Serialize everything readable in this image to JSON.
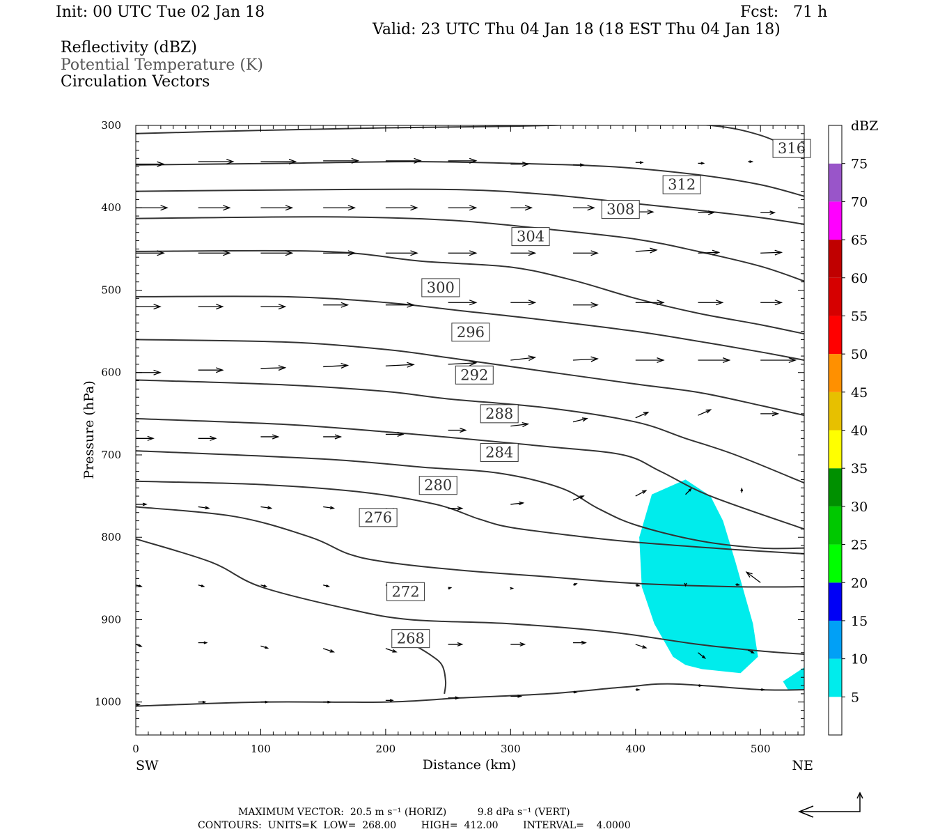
{
  "header": {
    "init": "Init: 00 UTC Tue 02 Jan 18",
    "fcst": "Fcst:   71 h",
    "valid": "Valid: 23 UTC Thu 04 Jan 18 (18 EST Thu 04 Jan 18)",
    "var1": "Reflectivity (dBZ)",
    "var2": "Potential Temperature (K)",
    "var3": "Circulation Vectors"
  },
  "footer": {
    "line1": "MAXIMUM VECTOR:  20.5 m s⁻¹ (HORIZ)          9.8 dPa s⁻¹ (VERT)",
    "line2": "CONTOURS:  UNITS=K  LOW=  268.00        HIGH=  412.00        INTERVAL=    4.0000"
  },
  "chart_data": {
    "type": "cross-section",
    "xlabel": "Distance (km)",
    "ylabel": "Pressure (hPa)",
    "xlim": [
      0,
      535
    ],
    "ylim": [
      1040,
      300
    ],
    "x_ticks": [
      0,
      100,
      200,
      300,
      400,
      500
    ],
    "y_ticks": [
      300,
      400,
      500,
      600,
      700,
      800,
      900,
      1000
    ],
    "x_end_labels": {
      "left": "SW",
      "right": "NE"
    },
    "colorbar": {
      "unit": "dBZ",
      "levels": [
        5,
        10,
        15,
        20,
        25,
        30,
        35,
        40,
        45,
        50,
        55,
        60,
        65,
        70,
        75
      ],
      "colors": [
        "#ffffff",
        "#00ecec",
        "#01a0f6",
        "#0000f6",
        "#00ff00",
        "#00c800",
        "#009000",
        "#ffff00",
        "#e7c000",
        "#ff9000",
        "#ff0000",
        "#d60000",
        "#c00000",
        "#ff00ff",
        "#9955c9",
        "#ffffff"
      ]
    },
    "contours": [
      {
        "label": "316",
        "points": [
          [
            0,
            310
          ],
          [
            100,
            306
          ],
          [
            200,
            303
          ],
          [
            300,
            301
          ],
          [
            400,
            298
          ],
          [
            460,
            300
          ],
          [
            500,
            312
          ],
          [
            535,
            335
          ]
        ],
        "label_at": [
          525,
          328
        ]
      },
      {
        "label": "",
        "points": [
          [
            0,
            348
          ],
          [
            120,
            346
          ],
          [
            220,
            344
          ],
          [
            300,
            346
          ],
          [
            380,
            350
          ],
          [
            450,
            360
          ],
          [
            500,
            372
          ],
          [
            535,
            386
          ]
        ]
      },
      {
        "label": "312",
        "points": [
          [
            0,
            380
          ],
          [
            150,
            378
          ],
          [
            260,
            378
          ],
          [
            330,
            384
          ],
          [
            400,
            395
          ],
          [
            450,
            403
          ],
          [
            500,
            412
          ],
          [
            535,
            420
          ]
        ],
        "label_at": [
          437,
          372
        ]
      },
      {
        "label": "308",
        "points": [
          [
            0,
            413
          ],
          [
            150,
            411
          ],
          [
            250,
            415
          ],
          [
            330,
            426
          ],
          [
            400,
            438
          ],
          [
            450,
            453
          ],
          [
            500,
            471
          ],
          [
            535,
            489
          ]
        ],
        "label_at": [
          388,
          402
        ]
      },
      {
        "label": "304",
        "points": [
          [
            0,
            453
          ],
          [
            150,
            453
          ],
          [
            230,
            465
          ],
          [
            300,
            472
          ],
          [
            350,
            488
          ],
          [
            400,
            510
          ],
          [
            450,
            528
          ],
          [
            500,
            542
          ],
          [
            535,
            553
          ]
        ],
        "label_at": [
          316,
          435
        ]
      },
      {
        "label": "300",
        "points": [
          [
            0,
            508
          ],
          [
            120,
            508
          ],
          [
            200,
            515
          ],
          [
            260,
            525
          ],
          [
            320,
            535
          ],
          [
            400,
            550
          ],
          [
            450,
            562
          ],
          [
            500,
            575
          ],
          [
            535,
            585
          ]
        ],
        "label_at": [
          244,
          497
        ]
      },
      {
        "label": "296",
        "points": [
          [
            0,
            560
          ],
          [
            120,
            563
          ],
          [
            200,
            572
          ],
          [
            250,
            582
          ],
          [
            320,
            597
          ],
          [
            400,
            614
          ],
          [
            450,
            624
          ],
          [
            500,
            640
          ],
          [
            535,
            652
          ]
        ],
        "label_at": [
          268,
          551
        ]
      },
      {
        "label": "292",
        "points": [
          [
            0,
            609
          ],
          [
            120,
            615
          ],
          [
            200,
            623
          ],
          [
            250,
            632
          ],
          [
            330,
            643
          ],
          [
            400,
            660
          ],
          [
            440,
            680
          ],
          [
            480,
            700
          ],
          [
            535,
            734
          ]
        ],
        "label_at": [
          271,
          603
        ]
      },
      {
        "label": "288",
        "points": [
          [
            0,
            656
          ],
          [
            120,
            663
          ],
          [
            200,
            672
          ],
          [
            260,
            680
          ],
          [
            330,
            690
          ],
          [
            390,
            700
          ],
          [
            420,
            720
          ],
          [
            460,
            750
          ],
          [
            535,
            790
          ]
        ],
        "label_at": [
          291,
          650
        ]
      },
      {
        "label": "284",
        "points": [
          [
            0,
            695
          ],
          [
            150,
            705
          ],
          [
            230,
            715
          ],
          [
            290,
            722
          ],
          [
            340,
            740
          ],
          [
            370,
            765
          ],
          [
            400,
            785
          ],
          [
            450,
            804
          ],
          [
            500,
            813
          ],
          [
            535,
            813
          ]
        ],
        "label_at": [
          291,
          697
        ]
      },
      {
        "label": "280",
        "points": [
          [
            0,
            732
          ],
          [
            100,
            736
          ],
          [
            180,
            745
          ],
          [
            240,
            760
          ],
          [
            275,
            778
          ],
          [
            300,
            788
          ],
          [
            350,
            798
          ],
          [
            400,
            806
          ],
          [
            480,
            815
          ],
          [
            535,
            820
          ]
        ],
        "label_at": [
          242,
          737
        ]
      },
      {
        "label": "276",
        "points": [
          [
            0,
            763
          ],
          [
            80,
            775
          ],
          [
            140,
            800
          ],
          [
            170,
            820
          ],
          [
            200,
            830
          ],
          [
            260,
            840
          ],
          [
            330,
            848
          ],
          [
            400,
            856
          ],
          [
            480,
            860
          ],
          [
            535,
            860
          ]
        ],
        "label_at": [
          194,
          776
        ]
      },
      {
        "label": "272",
        "points": [
          [
            0,
            802
          ],
          [
            60,
            830
          ],
          [
            100,
            860
          ],
          [
            170,
            887
          ],
          [
            220,
            900
          ],
          [
            300,
            905
          ],
          [
            380,
            915
          ],
          [
            450,
            930
          ],
          [
            500,
            938
          ],
          [
            535,
            942
          ]
        ],
        "label_at": [
          216,
          866
        ]
      },
      {
        "label": "268",
        "points": [
          [
            222,
            930
          ],
          [
            235,
            942
          ],
          [
            245,
            955
          ],
          [
            248,
            975
          ],
          [
            247,
            990
          ]
        ],
        "label_at": [
          220,
          923
        ]
      },
      {
        "label": "",
        "points": [
          [
            0,
            1005
          ],
          [
            100,
            1000
          ],
          [
            200,
            1000
          ],
          [
            260,
            995
          ],
          [
            330,
            990
          ],
          [
            390,
            982
          ],
          [
            430,
            978
          ],
          [
            500,
            985
          ],
          [
            535,
            985
          ]
        ]
      }
    ],
    "reflectivity_areas": [
      {
        "level": 5,
        "points": [
          [
            413,
            748
          ],
          [
            440,
            730
          ],
          [
            460,
            750
          ],
          [
            470,
            780
          ],
          [
            480,
            830
          ],
          [
            494,
            905
          ],
          [
            498,
            945
          ],
          [
            484,
            965
          ],
          [
            453,
            960
          ],
          [
            440,
            955
          ],
          [
            430,
            945
          ],
          [
            415,
            905
          ],
          [
            405,
            860
          ],
          [
            403,
            800
          ]
        ]
      },
      {
        "level": 5,
        "points": [
          [
            518,
            975
          ],
          [
            535,
            958
          ],
          [
            535,
            985
          ],
          [
            522,
            985
          ]
        ]
      }
    ],
    "vectors": [
      [
        0,
        347,
        40,
        0
      ],
      [
        50,
        344,
        50,
        0
      ],
      [
        100,
        344,
        50,
        0
      ],
      [
        150,
        343,
        50,
        0
      ],
      [
        200,
        343,
        50,
        0
      ],
      [
        250,
        343,
        40,
        0
      ],
      [
        300,
        347,
        25,
        0
      ],
      [
        350,
        348,
        15,
        0
      ],
      [
        400,
        345,
        10,
        0
      ],
      [
        450,
        346,
        8,
        0
      ],
      [
        490,
        344,
        6,
        0
      ],
      [
        0,
        400,
        45,
        0
      ],
      [
        50,
        400,
        45,
        0
      ],
      [
        100,
        400,
        45,
        0
      ],
      [
        150,
        400,
        45,
        0
      ],
      [
        200,
        400,
        45,
        0
      ],
      [
        250,
        400,
        40,
        0
      ],
      [
        300,
        400,
        30,
        0
      ],
      [
        350,
        400,
        30,
        0
      ],
      [
        400,
        405,
        25,
        0
      ],
      [
        450,
        406,
        22,
        0
      ],
      [
        500,
        406,
        20,
        0
      ],
      [
        0,
        455,
        40,
        0
      ],
      [
        50,
        455,
        45,
        0
      ],
      [
        100,
        455,
        45,
        0
      ],
      [
        150,
        455,
        45,
        0
      ],
      [
        200,
        455,
        45,
        0
      ],
      [
        250,
        455,
        40,
        0
      ],
      [
        300,
        455,
        35,
        0
      ],
      [
        350,
        455,
        35,
        0
      ],
      [
        400,
        453,
        30,
        -2
      ],
      [
        450,
        455,
        30,
        -1
      ],
      [
        500,
        455,
        30,
        -1
      ],
      [
        0,
        520,
        35,
        0
      ],
      [
        50,
        520,
        35,
        0
      ],
      [
        100,
        520,
        35,
        0
      ],
      [
        150,
        518,
        35,
        0
      ],
      [
        200,
        518,
        40,
        0
      ],
      [
        250,
        515,
        40,
        0
      ],
      [
        300,
        515,
        35,
        0
      ],
      [
        350,
        518,
        35,
        0
      ],
      [
        400,
        515,
        40,
        0
      ],
      [
        450,
        515,
        35,
        0
      ],
      [
        500,
        515,
        30,
        0
      ],
      [
        0,
        600,
        35,
        0
      ],
      [
        50,
        597,
        35,
        0
      ],
      [
        100,
        595,
        35,
        -1
      ],
      [
        150,
        593,
        35,
        -2
      ],
      [
        200,
        592,
        40,
        -2
      ],
      [
        250,
        590,
        40,
        -2
      ],
      [
        300,
        585,
        35,
        -4
      ],
      [
        350,
        585,
        35,
        -2
      ],
      [
        400,
        585,
        40,
        0
      ],
      [
        450,
        585,
        45,
        0
      ],
      [
        500,
        585,
        50,
        0
      ],
      [
        0,
        680,
        25,
        0
      ],
      [
        50,
        680,
        25,
        0
      ],
      [
        100,
        678,
        25,
        0
      ],
      [
        150,
        678,
        25,
        0
      ],
      [
        200,
        675,
        25,
        0
      ],
      [
        250,
        670,
        25,
        0
      ],
      [
        300,
        665,
        25,
        -3
      ],
      [
        350,
        660,
        20,
        -5
      ],
      [
        400,
        655,
        18,
        -8
      ],
      [
        450,
        652,
        18,
        -8
      ],
      [
        500,
        650,
        25,
        0
      ],
      [
        0,
        760,
        15,
        0
      ],
      [
        50,
        763,
        15,
        2
      ],
      [
        100,
        763,
        15,
        2
      ],
      [
        150,
        763,
        15,
        2
      ],
      [
        200,
        765,
        15,
        2
      ],
      [
        250,
        765,
        20,
        0
      ],
      [
        300,
        760,
        18,
        -2
      ],
      [
        350,
        755,
        15,
        -6
      ],
      [
        400,
        750,
        15,
        -8
      ],
      [
        440,
        748,
        8,
        -8
      ],
      [
        485,
        746,
        0,
        -6
      ],
      [
        0,
        858,
        8,
        2
      ],
      [
        50,
        858,
        8,
        2
      ],
      [
        100,
        858,
        8,
        2
      ],
      [
        150,
        858,
        8,
        2
      ],
      [
        200,
        858,
        8,
        1
      ],
      [
        250,
        862,
        4,
        -1
      ],
      [
        300,
        862,
        3,
        0
      ],
      [
        350,
        858,
        5,
        -2
      ],
      [
        400,
        858,
        5,
        1
      ],
      [
        440,
        857,
        0,
        2
      ],
      [
        480,
        857,
        5,
        1
      ],
      [
        500,
        855,
        -20,
        -15
      ],
      [
        0,
        930,
        8,
        3
      ],
      [
        50,
        928,
        12,
        0
      ],
      [
        100,
        932,
        10,
        3
      ],
      [
        150,
        935,
        15,
        5
      ],
      [
        200,
        935,
        15,
        5
      ],
      [
        250,
        930,
        20,
        0
      ],
      [
        300,
        930,
        20,
        0
      ],
      [
        350,
        928,
        18,
        0
      ],
      [
        400,
        930,
        15,
        5
      ],
      [
        450,
        940,
        10,
        8
      ],
      [
        490,
        937,
        8,
        4
      ],
      [
        0,
        1003,
        5,
        0
      ],
      [
        50,
        1000,
        10,
        0
      ],
      [
        100,
        1000,
        10,
        0
      ],
      [
        150,
        1000,
        10,
        0
      ],
      [
        200,
        998,
        10,
        0
      ],
      [
        250,
        995,
        15,
        0
      ],
      [
        300,
        993,
        15,
        0
      ],
      [
        350,
        988,
        5,
        0
      ],
      [
        400,
        985,
        5,
        0
      ],
      [
        450,
        980,
        5,
        0
      ],
      [
        500,
        985,
        5,
        0
      ]
    ]
  }
}
